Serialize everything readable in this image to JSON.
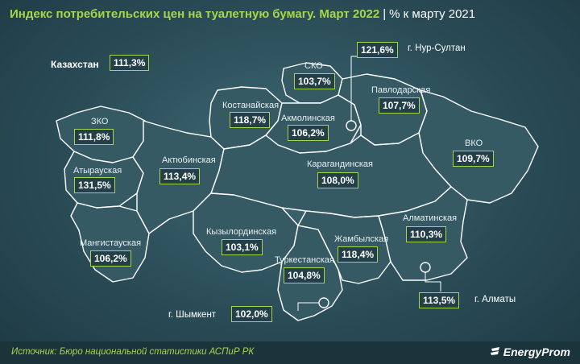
{
  "header": {
    "title": "Индекс потребительских цен на туалетную бумагу. Март 2022",
    "separator": "|",
    "subtitle": "% к марту 2021"
  },
  "country": {
    "name": "Казахстан",
    "value": "111,3%"
  },
  "regions": {
    "zko": {
      "name": "ЗКО",
      "value": "111,8%"
    },
    "atyrau": {
      "name": "Атырауская",
      "value": "131,5%"
    },
    "mangistau": {
      "name": "Мангистауская",
      "value": "106,2%"
    },
    "aktobe": {
      "name": "Актюбинская",
      "value": "113,4%"
    },
    "kostanay": {
      "name": "Костанайская",
      "value": "118,7%"
    },
    "sko": {
      "name": "СКО",
      "value": "103,7%"
    },
    "akmola": {
      "name": "Акмолинская",
      "value": "106,2%"
    },
    "pavlodar": {
      "name": "Павлодарская",
      "value": "107,7%"
    },
    "vko": {
      "name": "ВКО",
      "value": "109,7%"
    },
    "karaganda": {
      "name": "Карагандинская",
      "value": "108,0%"
    },
    "kyzylorda": {
      "name": "Кызылординская",
      "value": "103,1%"
    },
    "turkestan": {
      "name": "Туркестанская",
      "value": "104,8%"
    },
    "zhambyl": {
      "name": "Жамбылская",
      "value": "118,4%"
    },
    "almaty_region": {
      "name": "Алматинская",
      "value": "110,3%"
    }
  },
  "cities": {
    "nursultan": {
      "name": "г. Нур-Султан",
      "value": "121,6%"
    },
    "almaty": {
      "name": "г. Алматы",
      "value": "113,5%"
    },
    "shymkent": {
      "name": "г. Шымкент",
      "value": "102,0%"
    }
  },
  "footer": {
    "source": "Источник: Бюро национальной статистики АСПиР РК",
    "logo": "EnergyProm"
  },
  "colors": {
    "accent": "#a8d64a",
    "background": "#2a4c57",
    "region_fill": "#365a64",
    "border": "#ffffff"
  }
}
